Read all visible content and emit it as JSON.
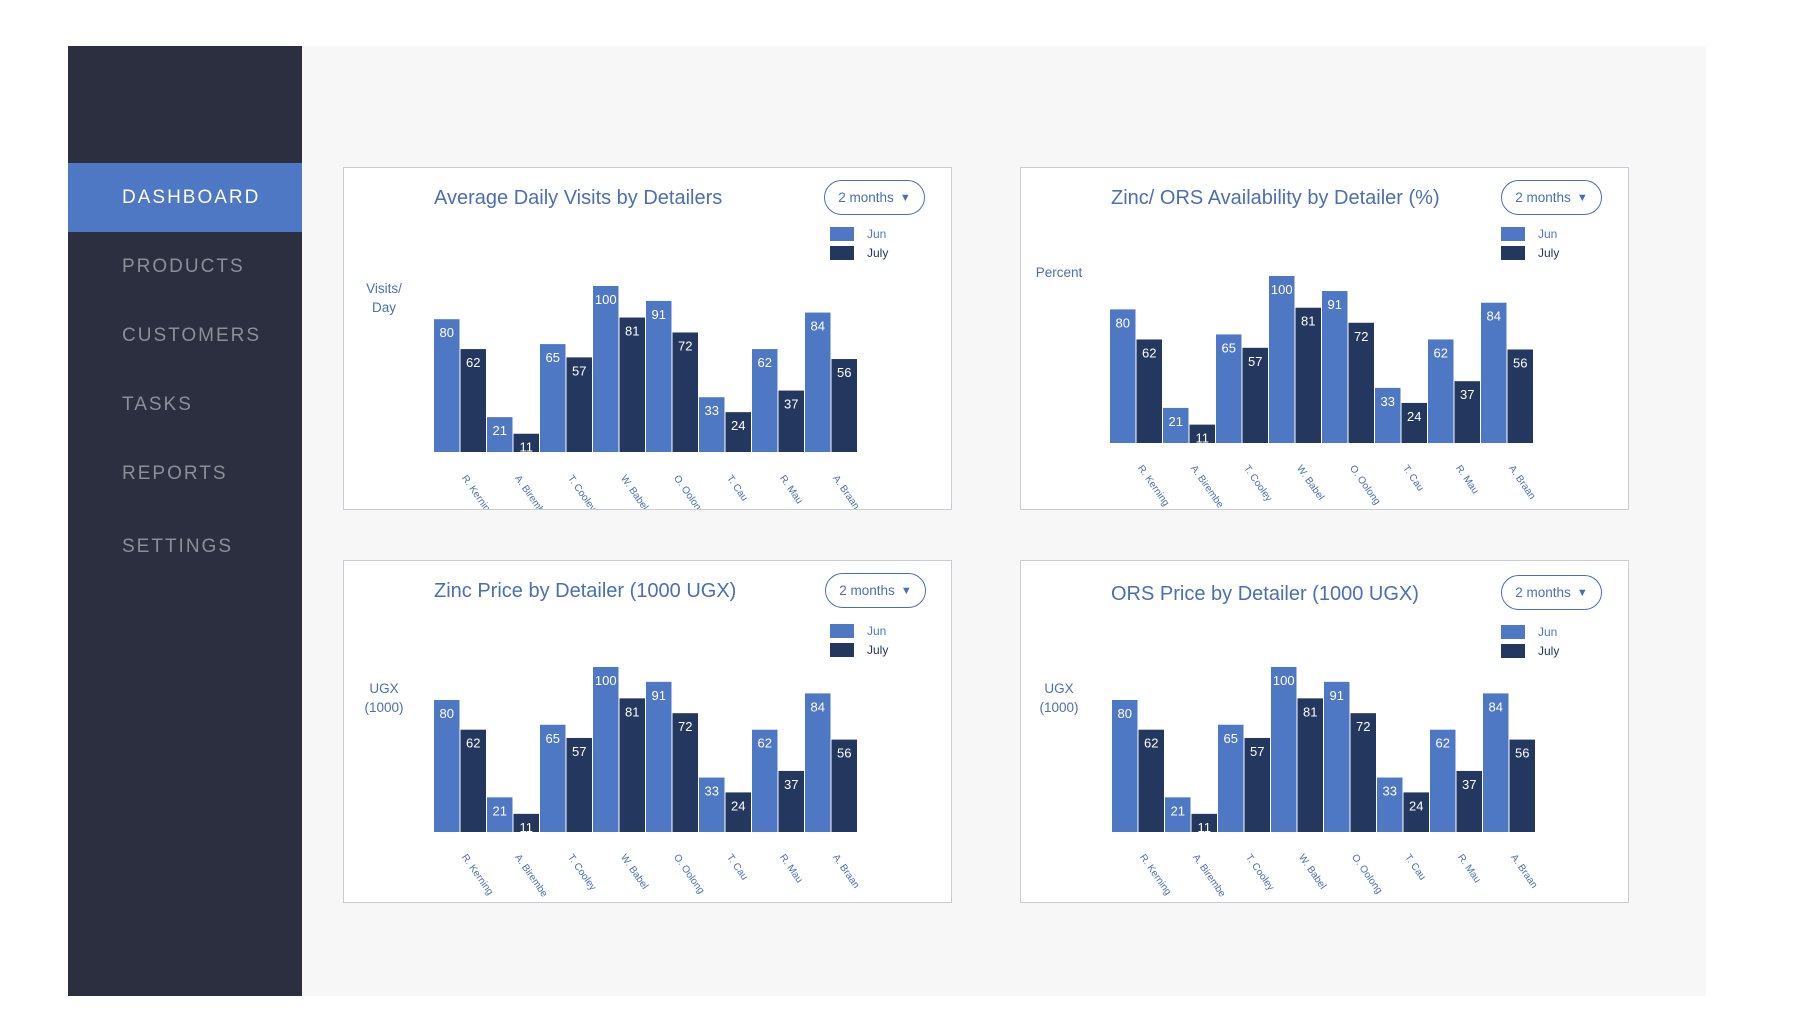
{
  "sidebar": {
    "items": [
      {
        "label": "DASHBOARD",
        "active": true
      },
      {
        "label": "PRODUCTS",
        "active": false
      },
      {
        "label": "CUSTOMERS",
        "active": false
      },
      {
        "label": "TASKS",
        "active": false
      },
      {
        "label": "REPORTS",
        "active": false
      },
      {
        "label": "SETTINGS",
        "active": false
      }
    ]
  },
  "colors": {
    "sidebar_bg": "#2b2f40",
    "active_nav": "#4f78c4",
    "jun_bar": "#4f78c4",
    "july_bar": "#23375f",
    "accent_text": "#4a6fb3"
  },
  "panels": [
    {
      "title": "Average Daily Visits by Detailers",
      "range": "2 months",
      "caret_icon": "caret-down-icon",
      "legend": [
        "Jun",
        "July"
      ],
      "ylabel": "Visits/\nDay",
      "chart_data": {
        "type": "bar",
        "categories": [
          "R. Kerning",
          "A. Birembe",
          "T. Cooley",
          "W. Babel",
          "O. Oolong",
          "T. Cau",
          "R. Mau",
          "A. Braan"
        ],
        "series": [
          {
            "name": "Jun",
            "values": [
              80,
              21,
              65,
              100,
              91,
              33,
              62,
              84
            ]
          },
          {
            "name": "July",
            "values": [
              62,
              11,
              57,
              81,
              72,
              24,
              37,
              56
            ]
          }
        ],
        "ylim": [
          0,
          100
        ],
        "grid": false,
        "legend_position": "top-right"
      }
    },
    {
      "title": "Zinc/ ORS Availability by Detailer (%)",
      "range": "2 months",
      "caret_icon": "caret-down-icon",
      "legend": [
        "Jun",
        "July"
      ],
      "ylabel": "Percent",
      "chart_data": {
        "type": "bar",
        "categories": [
          "R. Kerning",
          "A. Birembe",
          "T. Cooley",
          "W. Babel",
          "O. Oolong",
          "T. Cau",
          "R. Mau",
          "A. Braan"
        ],
        "series": [
          {
            "name": "Jun",
            "values": [
              80,
              21,
              65,
              100,
              91,
              33,
              62,
              84
            ]
          },
          {
            "name": "July",
            "values": [
              62,
              11,
              57,
              81,
              72,
              24,
              37,
              56
            ]
          }
        ],
        "ylim": [
          0,
          100
        ],
        "grid": false,
        "legend_position": "top-right"
      }
    },
    {
      "title": "Zinc Price by Detailer (1000 UGX)",
      "range": "2 months",
      "caret_icon": "caret-down-icon",
      "legend": [
        "Jun",
        "July"
      ],
      "ylabel": "UGX\n(1000)",
      "chart_data": {
        "type": "bar",
        "categories": [
          "R. Kerning",
          "A. Birembe",
          "T. Cooley",
          "W. Babel",
          "O. Oolong",
          "T. Cau",
          "R. Mau",
          "A. Braan"
        ],
        "series": [
          {
            "name": "Jun",
            "values": [
              80,
              21,
              65,
              100,
              91,
              33,
              62,
              84
            ]
          },
          {
            "name": "July",
            "values": [
              62,
              11,
              57,
              81,
              72,
              24,
              37,
              56
            ]
          }
        ],
        "ylim": [
          0,
          100
        ],
        "grid": false,
        "legend_position": "top-right"
      }
    },
    {
      "title": "ORS Price by Detailer (1000 UGX)",
      "range": "2 months",
      "caret_icon": "caret-down-icon",
      "legend": [
        "Jun",
        "July"
      ],
      "ylabel": "UGX\n(1000)",
      "chart_data": {
        "type": "bar",
        "categories": [
          "R. Kerning",
          "A. Birembe",
          "T. Cooley",
          "W. Babel",
          "O. Oolong",
          "T. Cau",
          "R. Mau",
          "A. Braan"
        ],
        "series": [
          {
            "name": "Jun",
            "values": [
              80,
              21,
              65,
              100,
              91,
              33,
              62,
              84
            ]
          },
          {
            "name": "July",
            "values": [
              62,
              11,
              57,
              81,
              72,
              24,
              37,
              56
            ]
          }
        ],
        "ylim": [
          0,
          100
        ],
        "grid": false,
        "legend_position": "top-right"
      }
    }
  ]
}
